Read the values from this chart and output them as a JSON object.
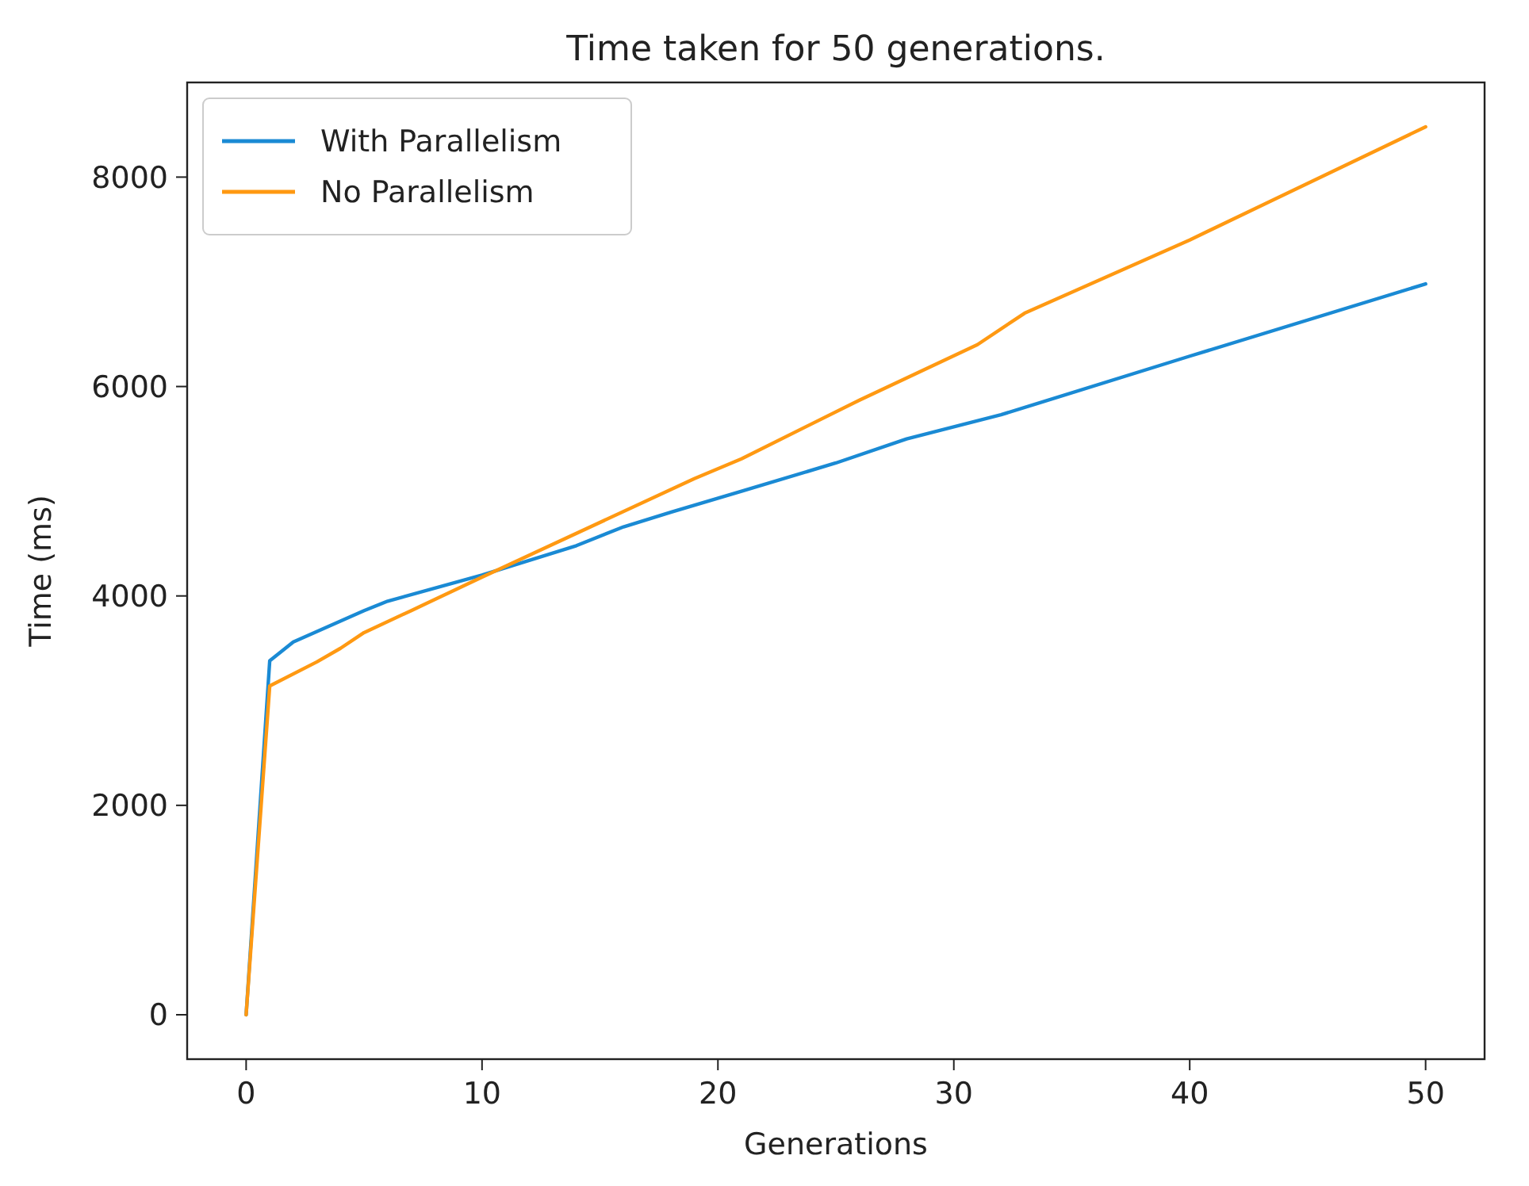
{
  "chart_data": {
    "type": "line",
    "title": "Time taken for 50 generations.",
    "xlabel": "Generations",
    "ylabel": "Time (ms)",
    "xlim": [
      -2.5,
      52.5
    ],
    "xticks": [
      0,
      10,
      20,
      30,
      40,
      50
    ],
    "ylim": [
      -424,
      8904
    ],
    "yticks": [
      0,
      2000,
      4000,
      6000,
      8000
    ],
    "legend": "top left",
    "grid": false,
    "line_style": "solid",
    "series": [
      {
        "name": "With Parallelism",
        "color": "#1a8ad4",
        "x": [
          0,
          1,
          2,
          5,
          6,
          10,
          14,
          16,
          18,
          21,
          25,
          28,
          32,
          40,
          50
        ],
        "values": [
          0,
          3380,
          3560,
          3860,
          3950,
          4200,
          4480,
          4660,
          4800,
          5000,
          5270,
          5500,
          5730,
          6290,
          6980
        ]
      },
      {
        "name": "No Parallelism",
        "color": "#ff9912",
        "x": [
          0,
          1,
          3,
          4,
          5,
          7,
          10,
          19,
          21,
          26,
          31,
          33,
          40,
          50
        ],
        "values": [
          0,
          3140,
          3370,
          3500,
          3650,
          3860,
          4180,
          5120,
          5310,
          5870,
          6400,
          6700,
          7400,
          8480
        ]
      }
    ]
  }
}
